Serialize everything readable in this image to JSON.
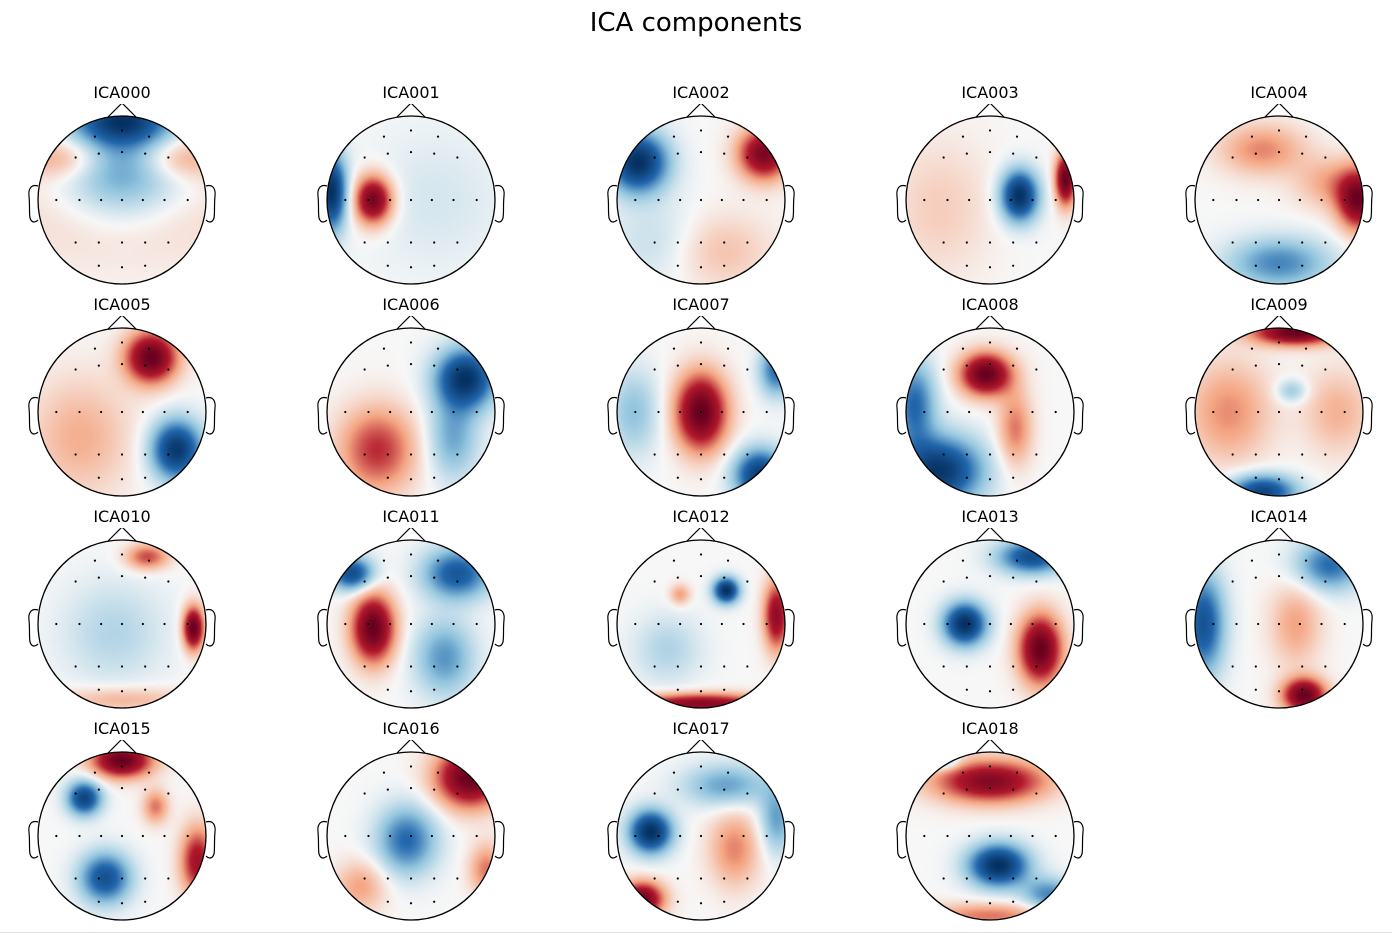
{
  "figure": {
    "title": "ICA components"
  },
  "colors": {
    "positive": "#67001f",
    "negative": "#053061",
    "neutral": "#f7f7f7",
    "outline": "#000000"
  },
  "components": [
    {
      "name": "ICA000",
      "pattern": [
        [
          0.0,
          -0.95,
          -1.0,
          0.55,
          0.28
        ],
        [
          0.0,
          -0.35,
          -0.6,
          0.7,
          0.6
        ],
        [
          0.0,
          0.2,
          0.18,
          1.6,
          0.6
        ],
        [
          -0.7,
          -0.5,
          0.4,
          0.5,
          0.25
        ],
        [
          0.7,
          -0.5,
          0.4,
          0.5,
          0.25
        ]
      ]
    },
    {
      "name": "ICA001",
      "pattern": [
        [
          -0.95,
          -0.1,
          -1.0,
          0.18,
          0.45
        ],
        [
          -0.45,
          0.0,
          0.95,
          0.22,
          0.28
        ],
        [
          0.3,
          0.0,
          -0.1,
          0.8,
          0.8
        ]
      ]
    },
    {
      "name": "ICA002",
      "pattern": [
        [
          -0.75,
          -0.45,
          -0.95,
          0.35,
          0.35
        ],
        [
          0.75,
          -0.55,
          0.85,
          0.3,
          0.3
        ],
        [
          0.2,
          0.6,
          0.2,
          0.6,
          0.45
        ],
        [
          -0.5,
          0.5,
          -0.15,
          0.6,
          0.5
        ]
      ]
    },
    {
      "name": "ICA003",
      "pattern": [
        [
          0.35,
          -0.05,
          -1.0,
          0.22,
          0.3
        ],
        [
          0.9,
          -0.25,
          1.0,
          0.12,
          0.3
        ],
        [
          -0.6,
          0.1,
          0.15,
          0.6,
          0.8
        ]
      ]
    },
    {
      "name": "ICA004",
      "pattern": [
        [
          0.95,
          0.0,
          1.0,
          0.25,
          0.35
        ],
        [
          -0.2,
          -0.6,
          0.4,
          0.5,
          0.3
        ],
        [
          0.0,
          0.75,
          -0.55,
          0.6,
          0.3
        ],
        [
          0.6,
          -0.2,
          0.3,
          0.4,
          0.3
        ]
      ]
    },
    {
      "name": "ICA005",
      "pattern": [
        [
          0.35,
          -0.65,
          0.95,
          0.3,
          0.3
        ],
        [
          0.65,
          0.45,
          -0.9,
          0.3,
          0.35
        ],
        [
          -0.5,
          0.3,
          0.25,
          0.6,
          0.7
        ]
      ]
    },
    {
      "name": "ICA006",
      "pattern": [
        [
          0.65,
          -0.4,
          -0.85,
          0.35,
          0.35
        ],
        [
          -0.4,
          0.45,
          0.5,
          0.45,
          0.5
        ],
        [
          0.5,
          0.3,
          -0.35,
          0.3,
          0.5
        ]
      ]
    },
    {
      "name": "ICA007",
      "pattern": [
        [
          0.0,
          0.0,
          1.0,
          0.3,
          0.45
        ],
        [
          0.7,
          0.75,
          -0.9,
          0.3,
          0.3
        ],
        [
          0.9,
          -0.5,
          -0.6,
          0.2,
          0.3
        ],
        [
          -0.8,
          0.0,
          -0.3,
          0.3,
          0.5
        ]
      ]
    },
    {
      "name": "ICA008",
      "pattern": [
        [
          -0.05,
          -0.45,
          1.0,
          0.3,
          0.25
        ],
        [
          -0.6,
          0.7,
          -0.95,
          0.5,
          0.4
        ],
        [
          0.3,
          0.2,
          0.4,
          0.2,
          0.45
        ],
        [
          -0.9,
          -0.1,
          -0.6,
          0.25,
          0.5
        ]
      ]
    },
    {
      "name": "ICA009",
      "pattern": [
        [
          0.2,
          -0.95,
          1.0,
          0.5,
          0.15
        ],
        [
          -0.2,
          0.95,
          -0.85,
          0.4,
          0.2
        ],
        [
          0.15,
          -0.25,
          -0.3,
          0.18,
          0.14
        ],
        [
          -0.6,
          0.0,
          0.35,
          0.5,
          0.6
        ],
        [
          0.7,
          0.0,
          0.25,
          0.4,
          0.5
        ]
      ]
    },
    {
      "name": "ICA010",
      "pattern": [
        [
          0.85,
          0.05,
          1.0,
          0.12,
          0.25
        ],
        [
          0.3,
          -0.8,
          0.5,
          0.25,
          0.15
        ],
        [
          0.0,
          0.9,
          0.25,
          0.8,
          0.15
        ],
        [
          -0.1,
          0.1,
          -0.2,
          0.6,
          0.6
        ]
      ]
    },
    {
      "name": "ICA011",
      "pattern": [
        [
          -0.45,
          0.05,
          1.0,
          0.25,
          0.4
        ],
        [
          -0.7,
          -0.6,
          -0.8,
          0.25,
          0.2
        ],
        [
          0.55,
          -0.6,
          -0.7,
          0.4,
          0.3
        ],
        [
          0.4,
          0.4,
          -0.45,
          0.35,
          0.45
        ]
      ]
    },
    {
      "name": "ICA012",
      "pattern": [
        [
          0.3,
          -0.4,
          -0.95,
          0.15,
          0.15
        ],
        [
          0.9,
          -0.1,
          0.75,
          0.15,
          0.4
        ],
        [
          0.0,
          0.95,
          0.8,
          0.8,
          0.12
        ],
        [
          -0.25,
          -0.35,
          0.3,
          0.12,
          0.12
        ],
        [
          -0.4,
          0.3,
          -0.2,
          0.4,
          0.4
        ]
      ]
    },
    {
      "name": "ICA013",
      "pattern": [
        [
          -0.3,
          0.0,
          -0.9,
          0.25,
          0.25
        ],
        [
          0.6,
          0.3,
          0.9,
          0.25,
          0.4
        ],
        [
          0.5,
          -0.8,
          -0.7,
          0.4,
          0.2
        ],
        [
          0.0,
          0.0,
          0.0,
          1.0,
          1.0
        ]
      ]
    },
    {
      "name": "ICA014",
      "pattern": [
        [
          0.3,
          0.85,
          1.0,
          0.25,
          0.2
        ],
        [
          -0.9,
          0.0,
          -0.75,
          0.25,
          0.6
        ],
        [
          0.6,
          -0.7,
          -0.6,
          0.4,
          0.3
        ],
        [
          0.2,
          0.0,
          0.3,
          0.3,
          0.5
        ]
      ]
    },
    {
      "name": "ICA015",
      "pattern": [
        [
          0.0,
          -0.9,
          1.0,
          0.35,
          0.2
        ],
        [
          -0.45,
          -0.45,
          -0.85,
          0.2,
          0.2
        ],
        [
          -0.2,
          0.5,
          -0.75,
          0.3,
          0.3
        ],
        [
          0.9,
          0.3,
          0.7,
          0.2,
          0.4
        ],
        [
          0.4,
          -0.35,
          0.4,
          0.15,
          0.2
        ]
      ]
    },
    {
      "name": "ICA016",
      "pattern": [
        [
          0.7,
          -0.7,
          1.0,
          0.4,
          0.35
        ],
        [
          -0.05,
          0.05,
          -0.6,
          0.35,
          0.4
        ],
        [
          0.9,
          0.4,
          0.4,
          0.2,
          0.3
        ],
        [
          -0.6,
          0.6,
          0.3,
          0.3,
          0.3
        ]
      ]
    },
    {
      "name": "ICA017",
      "pattern": [
        [
          -0.6,
          -0.05,
          -0.95,
          0.25,
          0.25
        ],
        [
          -0.7,
          0.75,
          0.9,
          0.25,
          0.2
        ],
        [
          0.4,
          0.15,
          0.35,
          0.3,
          0.45
        ],
        [
          0.3,
          -0.6,
          -0.4,
          0.5,
          0.25
        ],
        [
          0.9,
          -0.2,
          -0.4,
          0.2,
          0.4
        ]
      ]
    },
    {
      "name": "ICA018",
      "pattern": [
        [
          0.0,
          -0.65,
          0.85,
          0.65,
          0.25
        ],
        [
          0.1,
          0.35,
          -1.0,
          0.35,
          0.25
        ],
        [
          0.0,
          0.95,
          0.4,
          0.8,
          0.15
        ],
        [
          -0.6,
          -0.9,
          -0.6,
          0.2,
          0.1
        ],
        [
          0.7,
          0.7,
          -0.5,
          0.3,
          0.2
        ]
      ]
    }
  ]
}
